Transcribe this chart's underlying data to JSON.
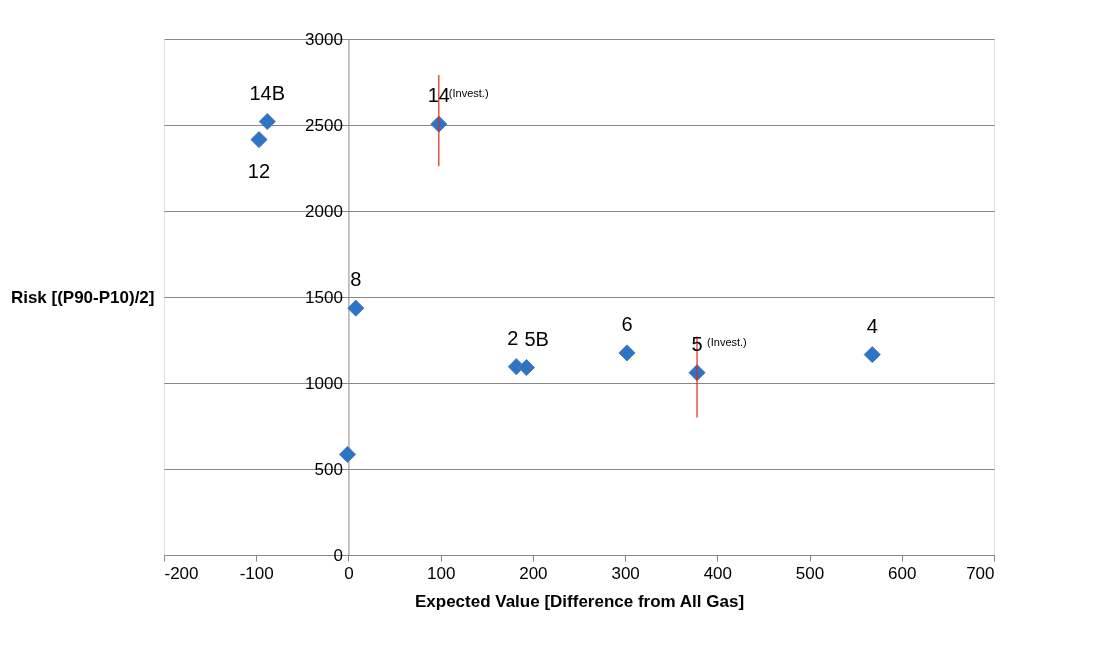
{
  "chart_data": {
    "type": "scatter",
    "xlabel": "Expected Value [Difference from All Gas]",
    "ylabel": "Risk [(P90-P10)/2]",
    "x": [
      -88,
      -97,
      98,
      8,
      -1,
      182,
      193,
      302,
      378,
      568
    ],
    "series": [
      {
        "color": "#2e74c4",
        "values": [
          2520,
          2415,
          2505,
          1435,
          585,
          1095,
          1090,
          1175,
          1060,
          1165
        ],
        "errors": [
          null,
          null,
          [
            2260,
            2790
          ],
          null,
          null,
          null,
          null,
          null,
          [
            800,
            1270
          ],
          null
        ]
      }
    ],
    "xlim": [
      -200,
      700
    ],
    "xticks": [
      -200,
      -100,
      0,
      100,
      200,
      300,
      400,
      500,
      600,
      700
    ],
    "ylim": [
      0,
      3000
    ],
    "yticks": [
      0,
      500,
      1000,
      1500,
      2000,
      2500,
      3000
    ],
    "grid": "y",
    "marker": "diamond",
    "annotations": [
      {
        "text": "14B",
        "x": -88,
        "y": 2520
      },
      {
        "text": "12",
        "x": -97,
        "y": 2415
      },
      {
        "text": "14",
        "x": 98,
        "y": 2505
      },
      {
        "text": "(Invest.)",
        "x": 98,
        "y": 2505
      },
      {
        "text": "8",
        "x": 8,
        "y": 1435
      },
      {
        "text": "2",
        "x": 182,
        "y": 1095
      },
      {
        "text": "5B",
        "x": 193,
        "y": 1090
      },
      {
        "text": "6",
        "x": 302,
        "y": 1175
      },
      {
        "text": "5",
        "x": 378,
        "y": 1060
      },
      {
        "text": "(Invest.)",
        "x": 378,
        "y": 1060
      },
      {
        "text": "4",
        "x": 568,
        "y": 1165
      }
    ]
  }
}
